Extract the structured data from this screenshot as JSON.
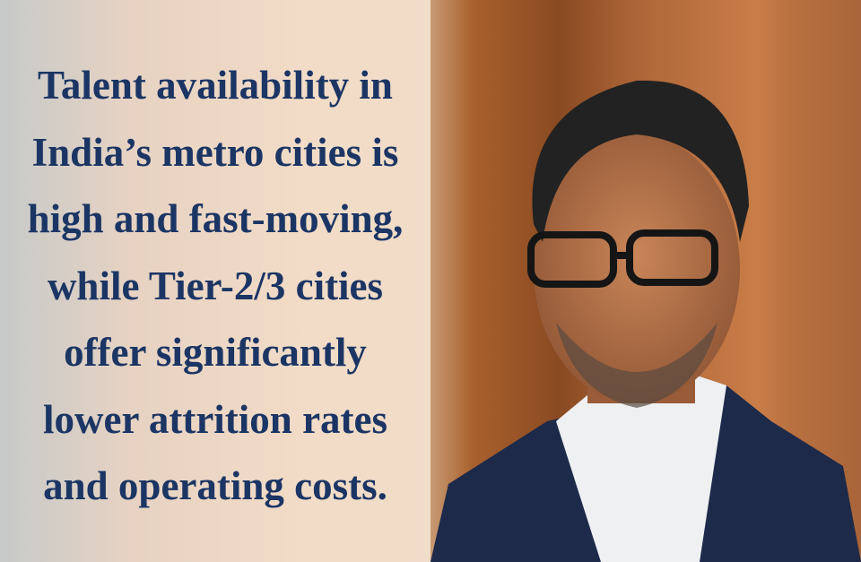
{
  "quote": {
    "lines": [
      "Talent availability in",
      "India’s metro cities is",
      "high and fast-moving,",
      "while Tier-2/3 cities",
      "offer significantly",
      "lower attrition rates",
      "and operating costs."
    ],
    "text_color": "#1b3564"
  },
  "photo": {
    "subject": "portrait-man-glasses-suit"
  }
}
